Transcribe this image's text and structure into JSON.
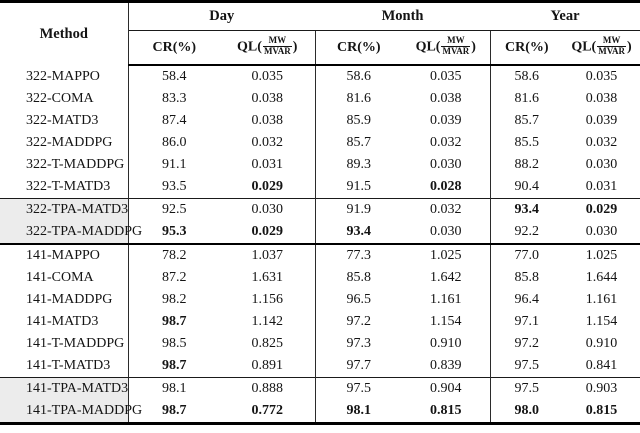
{
  "colors": {
    "highlight_bg": "#ececec",
    "rule_color": "#000000",
    "text_color": "#141414"
  },
  "header": {
    "method": "Method",
    "groups": [
      "Day",
      "Month",
      "Year"
    ],
    "cr_label": "CR(%)",
    "ql_prefix": "QL(",
    "ql_numerator": "MW",
    "ql_denominator": "MVAR",
    "ql_suffix": ")"
  },
  "chart_data": {
    "type": "table",
    "columns": [
      "Method",
      "Day CR(%)",
      "Day QL(MW/MVAR)",
      "Month CR(%)",
      "Month QL(MW/MVAR)",
      "Year CR(%)",
      "Year QL(MW/MVAR)"
    ]
  },
  "rows": [
    {
      "method": "322-MAPPO",
      "shaded": false,
      "rule_above": "none",
      "values": [
        "58.4",
        "0.035",
        "58.6",
        "0.035",
        "58.6",
        "0.035"
      ],
      "bold": [
        false,
        false,
        false,
        false,
        false,
        false
      ]
    },
    {
      "method": "322-COMA",
      "shaded": false,
      "rule_above": "none",
      "values": [
        "83.3",
        "0.038",
        "81.6",
        "0.038",
        "81.6",
        "0.038"
      ],
      "bold": [
        false,
        false,
        false,
        false,
        false,
        false
      ]
    },
    {
      "method": "322-MATD3",
      "shaded": false,
      "rule_above": "none",
      "values": [
        "87.4",
        "0.038",
        "85.9",
        "0.039",
        "85.7",
        "0.039"
      ],
      "bold": [
        false,
        false,
        false,
        false,
        false,
        false
      ]
    },
    {
      "method": "322-MADDPG",
      "shaded": false,
      "rule_above": "none",
      "values": [
        "86.0",
        "0.032",
        "85.7",
        "0.032",
        "85.5",
        "0.032"
      ],
      "bold": [
        false,
        false,
        false,
        false,
        false,
        false
      ]
    },
    {
      "method": "322-T-MADDPG",
      "shaded": false,
      "rule_above": "none",
      "values": [
        "91.1",
        "0.031",
        "89.3",
        "0.030",
        "88.2",
        "0.030"
      ],
      "bold": [
        false,
        false,
        false,
        false,
        false,
        false
      ]
    },
    {
      "method": "322-T-MATD3",
      "shaded": false,
      "rule_above": "none",
      "values": [
        "93.5",
        "0.029",
        "91.5",
        "0.028",
        "90.4",
        "0.031"
      ],
      "bold": [
        false,
        true,
        false,
        true,
        false,
        false
      ]
    },
    {
      "method": "322-TPA-MATD3",
      "shaded": true,
      "rule_above": "thin",
      "values": [
        "92.5",
        "0.030",
        "91.9",
        "0.032",
        "93.4",
        "0.029"
      ],
      "bold": [
        false,
        false,
        false,
        false,
        true,
        true
      ]
    },
    {
      "method": "322-TPA-MADDPG",
      "shaded": true,
      "rule_above": "none",
      "values": [
        "95.3",
        "0.029",
        "93.4",
        "0.030",
        "92.2",
        "0.030"
      ],
      "bold": [
        true,
        true,
        true,
        false,
        false,
        false
      ]
    },
    {
      "method": "141-MAPPO",
      "shaded": false,
      "rule_above": "thick",
      "values": [
        "78.2",
        "1.037",
        "77.3",
        "1.025",
        "77.0",
        "1.025"
      ],
      "bold": [
        false,
        false,
        false,
        false,
        false,
        false
      ]
    },
    {
      "method": "141-COMA",
      "shaded": false,
      "rule_above": "none",
      "values": [
        "87.2",
        "1.631",
        "85.8",
        "1.642",
        "85.8",
        "1.644"
      ],
      "bold": [
        false,
        false,
        false,
        false,
        false,
        false
      ]
    },
    {
      "method": "141-MADDPG",
      "shaded": false,
      "rule_above": "none",
      "values": [
        "98.2",
        "1.156",
        "96.5",
        "1.161",
        "96.4",
        "1.161"
      ],
      "bold": [
        false,
        false,
        false,
        false,
        false,
        false
      ]
    },
    {
      "method": "141-MATD3",
      "shaded": false,
      "rule_above": "none",
      "values": [
        "98.7",
        "1.142",
        "97.2",
        "1.154",
        "97.1",
        "1.154"
      ],
      "bold": [
        true,
        false,
        false,
        false,
        false,
        false
      ]
    },
    {
      "method": "141-T-MADDPG",
      "shaded": false,
      "rule_above": "none",
      "values": [
        "98.5",
        "0.825",
        "97.3",
        "0.910",
        "97.2",
        "0.910"
      ],
      "bold": [
        false,
        false,
        false,
        false,
        false,
        false
      ]
    },
    {
      "method": "141-T-MATD3",
      "shaded": false,
      "rule_above": "none",
      "values": [
        "98.7",
        "0.891",
        "97.7",
        "0.839",
        "97.5",
        "0.841"
      ],
      "bold": [
        true,
        false,
        false,
        false,
        false,
        false
      ]
    },
    {
      "method": "141-TPA-MATD3",
      "shaded": true,
      "rule_above": "thin",
      "values": [
        "98.1",
        "0.888",
        "97.5",
        "0.904",
        "97.5",
        "0.903"
      ],
      "bold": [
        false,
        false,
        false,
        false,
        false,
        false
      ]
    },
    {
      "method": "141-TPA-MADDPG",
      "shaded": true,
      "rule_above": "none",
      "values": [
        "98.7",
        "0.772",
        "98.1",
        "0.815",
        "98.0",
        "0.815"
      ],
      "bold": [
        true,
        true,
        true,
        true,
        true,
        true
      ]
    }
  ]
}
